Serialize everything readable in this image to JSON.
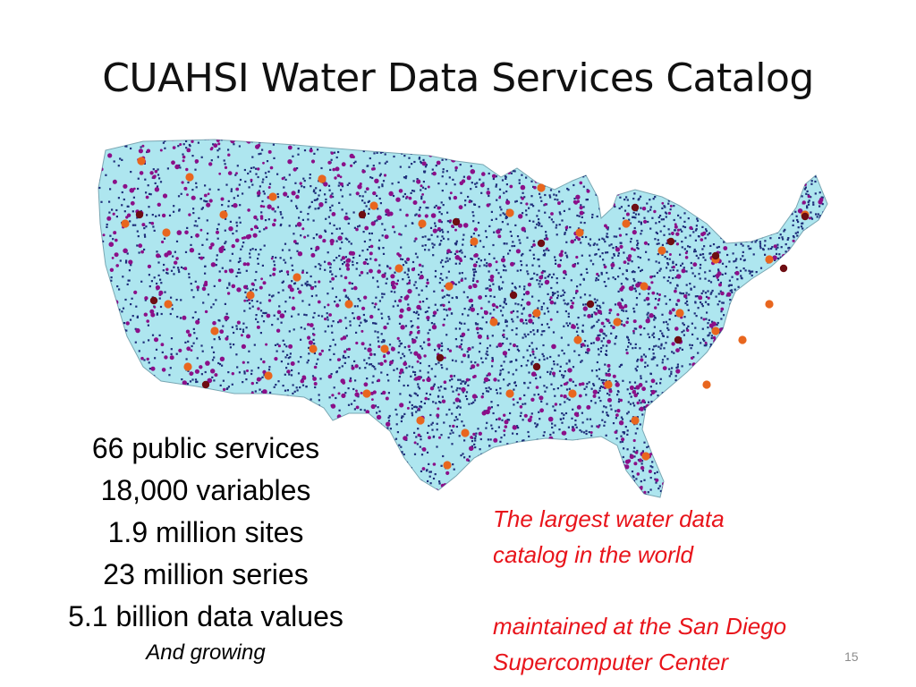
{
  "slide": {
    "title": "CUAHSI Water Data Services Catalog",
    "page_number": "15"
  },
  "map": {
    "land_color": "#aee6ef",
    "site_colors": {
      "dense_sites": "#1f2e7a",
      "secondary_sites": "#8b0f88",
      "service_points": "#e8661e",
      "highlight_points": "#6e0d12"
    }
  },
  "stats": {
    "lines": [
      "66 public services",
      "18,000 variables",
      "1.9 million sites",
      "23 million series",
      "5.1 billion data values"
    ],
    "note": "And growing"
  },
  "callout": {
    "line1": "The largest water data",
    "line2": "catalog in the world",
    "line3": "maintained at the San Diego",
    "line4": "Supercomputer Center"
  }
}
